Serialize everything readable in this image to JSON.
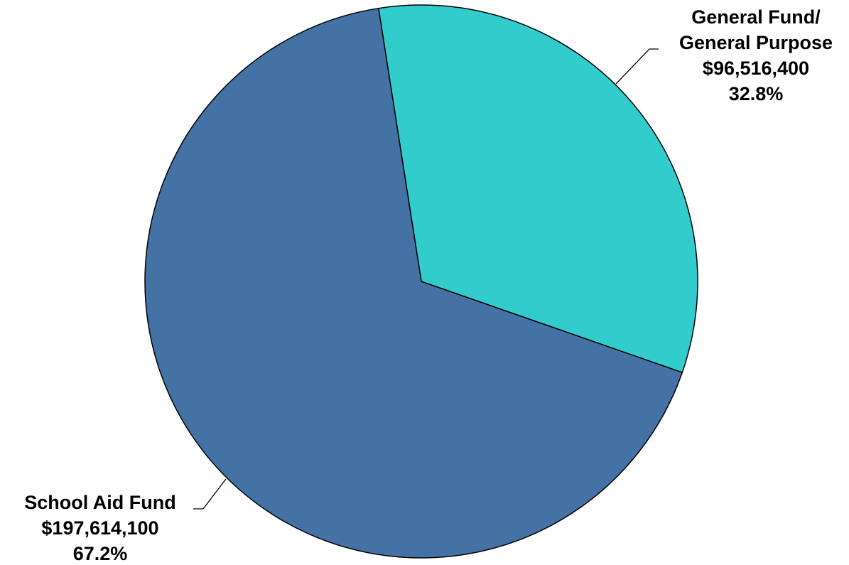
{
  "chart_data": {
    "type": "pie",
    "title": "",
    "start_angle_deg": -8.9,
    "direction": "clockwise",
    "slices": [
      {
        "label_lines": [
          "General Fund/",
          "General Purpose"
        ],
        "value": 96516400,
        "value_text": "$96,516,400",
        "percent": 32.8,
        "percent_text": "32.8%",
        "color": "#33cccc"
      },
      {
        "label_lines": [
          "School Aid Fund"
        ],
        "value": 197614100,
        "value_text": "$197,614,100",
        "percent": 67.2,
        "percent_text": "67.2%",
        "color": "#4472a5"
      }
    ]
  }
}
